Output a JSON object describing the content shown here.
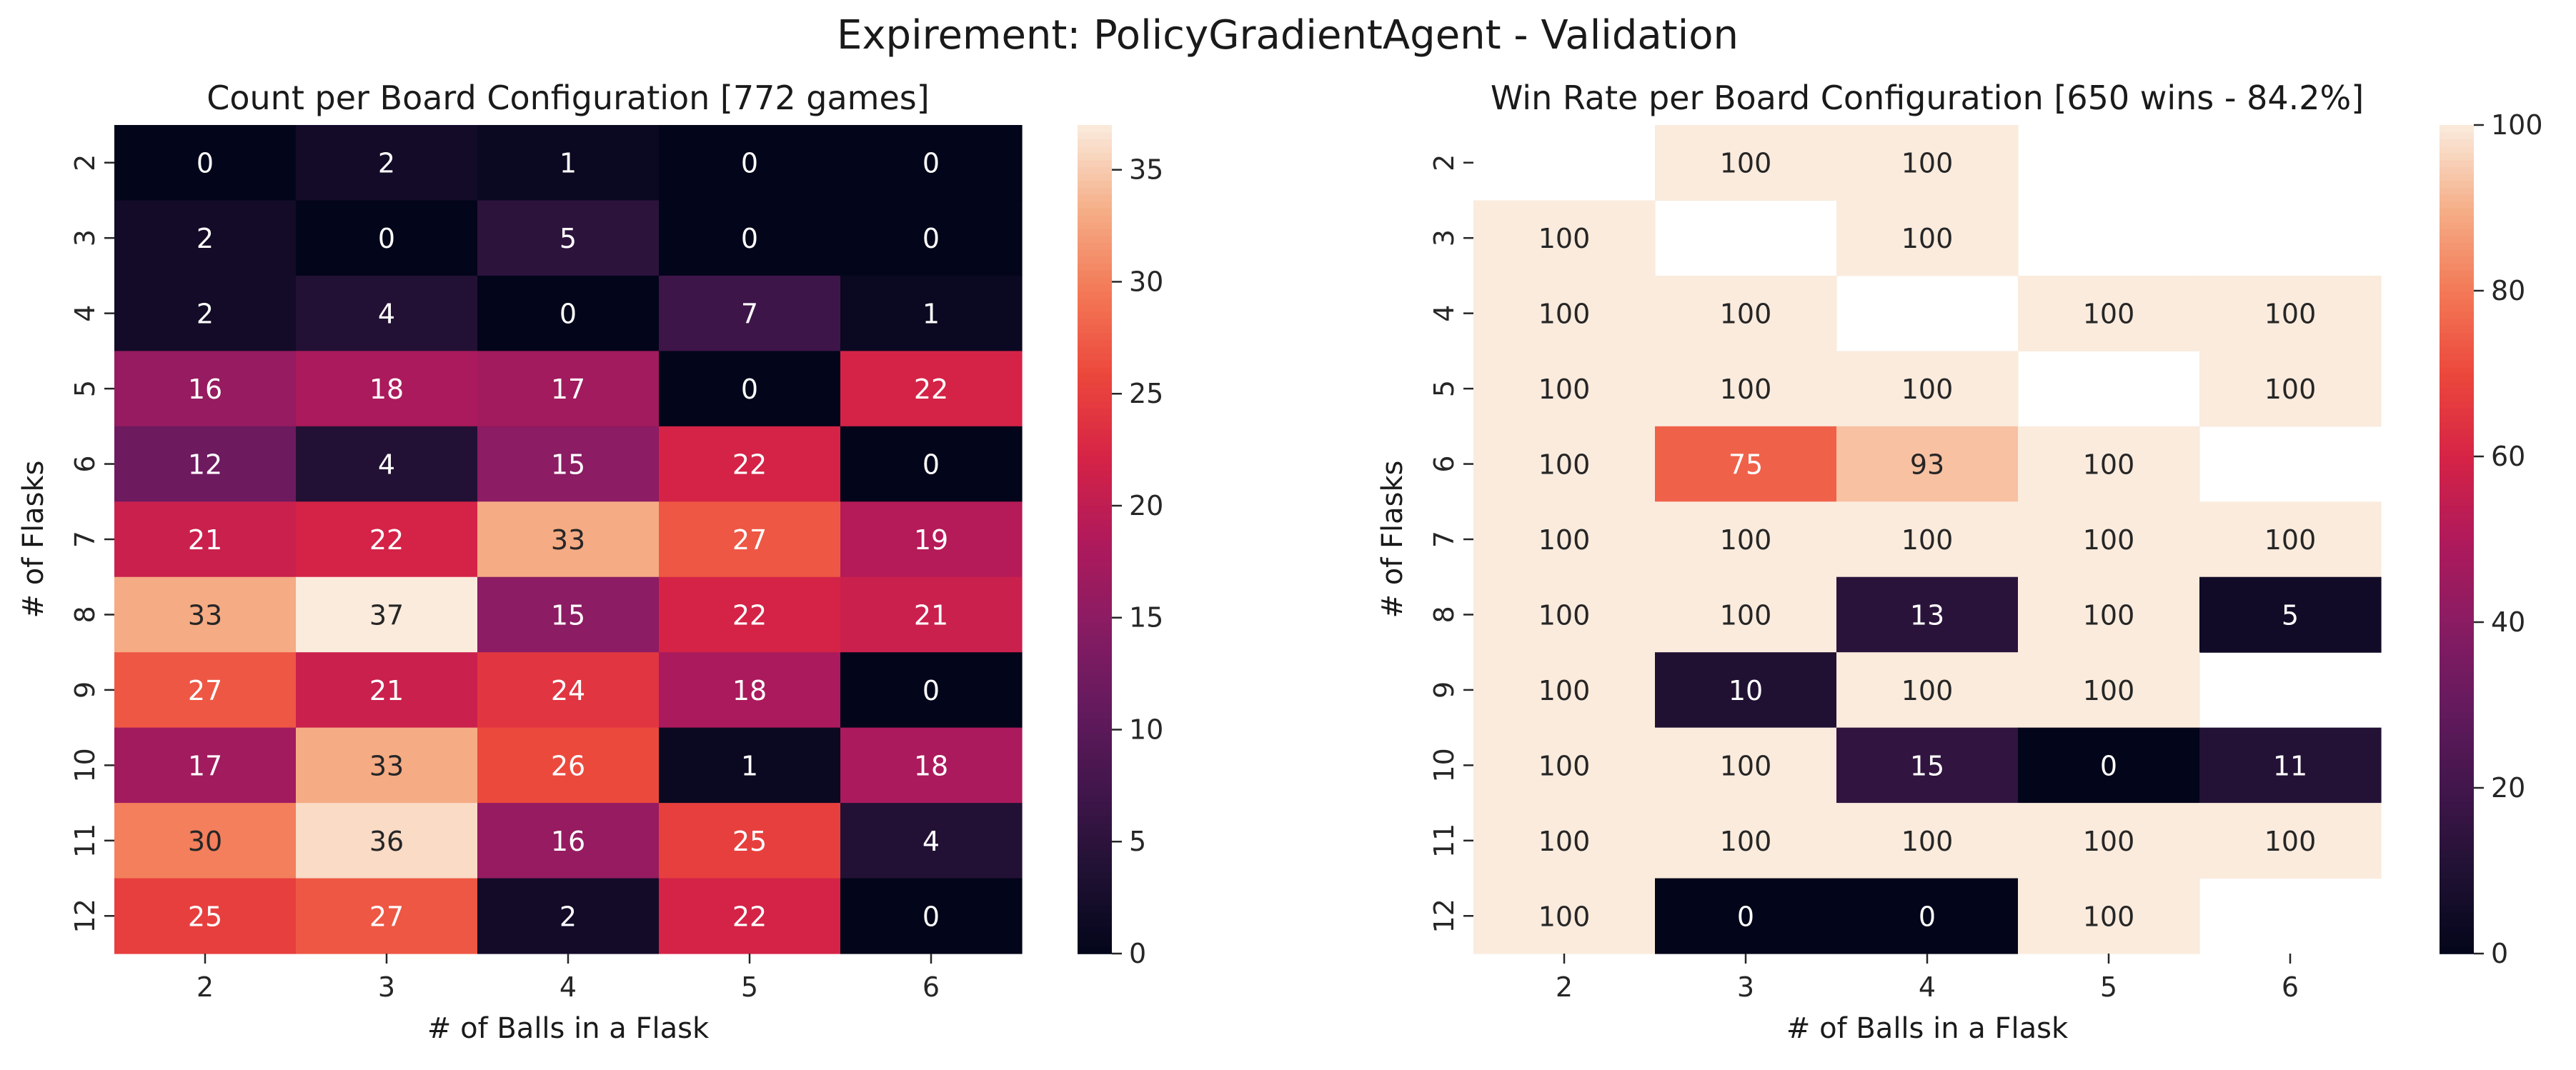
{
  "figure": {
    "suptitle": "Expirement: PolicyGradientAgent - Validation"
  },
  "chart_data": [
    {
      "type": "heatmap",
      "title": "Count per Board Configuration [772 games]",
      "xlabel": "# of Balls in a Flask",
      "ylabel": "# of Flasks",
      "x_categories": [
        "2",
        "3",
        "4",
        "5",
        "6"
      ],
      "y_categories": [
        "2",
        "3",
        "4",
        "5",
        "6",
        "7",
        "8",
        "9",
        "10",
        "11",
        "12"
      ],
      "values": [
        [
          0,
          2,
          1,
          0,
          0
        ],
        [
          2,
          0,
          5,
          0,
          0
        ],
        [
          2,
          4,
          0,
          7,
          1
        ],
        [
          16,
          18,
          17,
          0,
          22
        ],
        [
          12,
          4,
          15,
          22,
          0
        ],
        [
          21,
          22,
          33,
          27,
          19
        ],
        [
          33,
          37,
          15,
          22,
          21
        ],
        [
          27,
          21,
          24,
          18,
          0
        ],
        [
          17,
          33,
          26,
          1,
          18
        ],
        [
          30,
          36,
          16,
          25,
          4
        ],
        [
          25,
          27,
          2,
          22,
          0
        ]
      ],
      "colorbar": {
        "min": 0,
        "max": 37,
        "ticks": [
          "0",
          "5",
          "10",
          "15",
          "20",
          "25",
          "30",
          "35"
        ],
        "colormap": "rocket"
      }
    },
    {
      "type": "heatmap",
      "title": "Win Rate per Board Configuration [650 wins - 84.2%]",
      "xlabel": "# of Balls in a Flask",
      "ylabel": "# of Flasks",
      "x_categories": [
        "2",
        "3",
        "4",
        "5",
        "6"
      ],
      "y_categories": [
        "2",
        "3",
        "4",
        "5",
        "6",
        "7",
        "8",
        "9",
        "10",
        "11",
        "12"
      ],
      "values": [
        [
          null,
          100,
          100,
          null,
          null
        ],
        [
          100,
          null,
          100,
          null,
          null
        ],
        [
          100,
          100,
          null,
          100,
          100
        ],
        [
          100,
          100,
          100,
          null,
          100
        ],
        [
          100,
          75,
          93,
          100,
          null
        ],
        [
          100,
          100,
          100,
          100,
          100
        ],
        [
          100,
          100,
          13,
          100,
          5
        ],
        [
          100,
          10,
          100,
          100,
          null
        ],
        [
          100,
          100,
          15,
          0,
          11
        ],
        [
          100,
          100,
          100,
          100,
          100
        ],
        [
          100,
          0,
          0,
          100,
          null
        ]
      ],
      "colorbar": {
        "min": 0,
        "max": 100,
        "ticks": [
          "0",
          "20",
          "40",
          "60",
          "80",
          "100"
        ],
        "colormap": "rocket"
      }
    }
  ]
}
